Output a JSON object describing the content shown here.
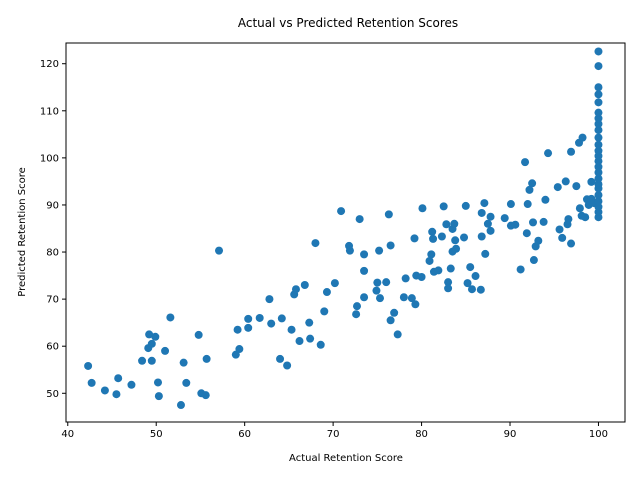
{
  "chart_data": {
    "type": "scatter",
    "title": "Actual vs Predicted Retention Scores",
    "xlabel": "Actual Retention Score",
    "ylabel": "Predicted Retention Score",
    "xlim": [
      39.8,
      103.0
    ],
    "ylim": [
      43.9,
      124.4
    ],
    "xticks": [
      40,
      50,
      60,
      70,
      80,
      90,
      100
    ],
    "yticks": [
      50,
      60,
      70,
      80,
      90,
      100,
      110,
      120
    ],
    "grid": false,
    "legend": "none",
    "marker_color": "#1f77b4",
    "points": [
      [
        42.3,
        55.8
      ],
      [
        42.7,
        52.2
      ],
      [
        44.2,
        50.6
      ],
      [
        45.5,
        49.8
      ],
      [
        45.7,
        53.2
      ],
      [
        47.2,
        51.8
      ],
      [
        48.4,
        56.9
      ],
      [
        49.1,
        59.6
      ],
      [
        49.2,
        62.5
      ],
      [
        49.5,
        60.5
      ],
      [
        49.5,
        56.9
      ],
      [
        49.9,
        62.0
      ],
      [
        50.2,
        52.3
      ],
      [
        50.3,
        49.4
      ],
      [
        51.0,
        59.0
      ],
      [
        51.6,
        66.1
      ],
      [
        52.8,
        47.5
      ],
      [
        53.1,
        56.5
      ],
      [
        53.4,
        52.2
      ],
      [
        54.8,
        62.4
      ],
      [
        55.1,
        50.0
      ],
      [
        55.6,
        49.6
      ],
      [
        55.7,
        57.3
      ],
      [
        57.1,
        80.3
      ],
      [
        59.0,
        58.2
      ],
      [
        59.2,
        63.5
      ],
      [
        59.4,
        59.4
      ],
      [
        60.4,
        65.8
      ],
      [
        60.4,
        63.9
      ],
      [
        61.7,
        66.0
      ],
      [
        62.8,
        70.0
      ],
      [
        63.0,
        64.8
      ],
      [
        64.0,
        57.3
      ],
      [
        64.2,
        65.9
      ],
      [
        64.8,
        55.9
      ],
      [
        65.3,
        63.5
      ],
      [
        65.6,
        71.0
      ],
      [
        65.8,
        72.1
      ],
      [
        66.2,
        61.1
      ],
      [
        66.8,
        73.0
      ],
      [
        67.3,
        65.0
      ],
      [
        67.4,
        61.6
      ],
      [
        68.0,
        81.9
      ],
      [
        68.6,
        60.3
      ],
      [
        69.0,
        67.4
      ],
      [
        69.3,
        71.5
      ],
      [
        70.2,
        73.4
      ],
      [
        70.9,
        88.7
      ],
      [
        71.8,
        81.3
      ],
      [
        71.9,
        80.3
      ],
      [
        72.6,
        66.8
      ],
      [
        72.7,
        68.5
      ],
      [
        73.0,
        87.0
      ],
      [
        73.5,
        70.4
      ],
      [
        73.5,
        76.0
      ],
      [
        73.5,
        79.5
      ],
      [
        74.9,
        71.8
      ],
      [
        75.0,
        73.5
      ],
      [
        75.2,
        80.3
      ],
      [
        75.3,
        70.2
      ],
      [
        76.0,
        73.6
      ],
      [
        76.3,
        88.0
      ],
      [
        76.5,
        65.5
      ],
      [
        76.5,
        81.4
      ],
      [
        76.9,
        67.1
      ],
      [
        77.3,
        62.5
      ],
      [
        78.0,
        70.4
      ],
      [
        78.2,
        74.4
      ],
      [
        78.9,
        70.2
      ],
      [
        79.2,
        82.9
      ],
      [
        79.3,
        68.9
      ],
      [
        79.4,
        75.0
      ],
      [
        80.0,
        74.7
      ],
      [
        80.1,
        89.3
      ],
      [
        80.9,
        78.1
      ],
      [
        81.1,
        79.5
      ],
      [
        81.2,
        84.3
      ],
      [
        81.3,
        82.8
      ],
      [
        81.4,
        75.8
      ],
      [
        81.9,
        76.1
      ],
      [
        82.3,
        83.3
      ],
      [
        82.5,
        89.7
      ],
      [
        82.8,
        85.9
      ],
      [
        83.0,
        73.6
      ],
      [
        83.0,
        72.3
      ],
      [
        83.3,
        76.5
      ],
      [
        83.5,
        84.9
      ],
      [
        83.5,
        80.1
      ],
      [
        83.7,
        86.0
      ],
      [
        83.8,
        82.5
      ],
      [
        83.9,
        80.7
      ],
      [
        84.8,
        83.1
      ],
      [
        85.0,
        89.8
      ],
      [
        85.2,
        73.4
      ],
      [
        85.5,
        76.8
      ],
      [
        85.7,
        72.1
      ],
      [
        86.1,
        74.9
      ],
      [
        86.7,
        72.0
      ],
      [
        86.8,
        83.3
      ],
      [
        86.8,
        88.3
      ],
      [
        87.1,
        90.4
      ],
      [
        87.2,
        79.6
      ],
      [
        87.5,
        86.0
      ],
      [
        87.8,
        87.5
      ],
      [
        87.8,
        84.5
      ],
      [
        89.4,
        87.2
      ],
      [
        90.1,
        90.2
      ],
      [
        90.1,
        85.6
      ],
      [
        90.6,
        85.8
      ],
      [
        91.2,
        76.3
      ],
      [
        91.7,
        99.1
      ],
      [
        91.9,
        84.0
      ],
      [
        92.0,
        90.2
      ],
      [
        92.2,
        93.2
      ],
      [
        92.5,
        94.6
      ],
      [
        92.6,
        86.3
      ],
      [
        92.7,
        78.3
      ],
      [
        92.9,
        81.2
      ],
      [
        93.2,
        82.4
      ],
      [
        93.8,
        86.4
      ],
      [
        94.0,
        91.1
      ],
      [
        94.3,
        101.0
      ],
      [
        95.4,
        93.8
      ],
      [
        95.6,
        84.8
      ],
      [
        95.9,
        83.0
      ],
      [
        96.3,
        95.0
      ],
      [
        96.5,
        85.9
      ],
      [
        96.6,
        87.0
      ],
      [
        96.9,
        81.8
      ],
      [
        96.9,
        101.3
      ],
      [
        97.5,
        94.0
      ],
      [
        97.8,
        103.2
      ],
      [
        97.9,
        89.3
      ],
      [
        98.1,
        87.7
      ],
      [
        98.2,
        104.3
      ],
      [
        98.5,
        87.4
      ],
      [
        98.7,
        91.2
      ],
      [
        98.9,
        90.0
      ],
      [
        99.2,
        91.3
      ],
      [
        99.2,
        94.9
      ],
      [
        99.5,
        90.4
      ],
      [
        100,
        87.4
      ],
      [
        100,
        88.5
      ],
      [
        100,
        89.6
      ],
      [
        100,
        90.8
      ],
      [
        100,
        92.1
      ],
      [
        100,
        93.5
      ],
      [
        100,
        94.4
      ],
      [
        100,
        95.6
      ],
      [
        100,
        96.9
      ],
      [
        100,
        98.1
      ],
      [
        100,
        99.3
      ],
      [
        100,
        100.4
      ],
      [
        100,
        101.5
      ],
      [
        100,
        102.8
      ],
      [
        100,
        104.3
      ],
      [
        100,
        105.9
      ],
      [
        100,
        107.2
      ],
      [
        100,
        108.4
      ],
      [
        100,
        109.6
      ],
      [
        100,
        111.8
      ],
      [
        100,
        113.5
      ],
      [
        100,
        115.0
      ],
      [
        100,
        119.5
      ],
      [
        100,
        122.6
      ]
    ]
  }
}
